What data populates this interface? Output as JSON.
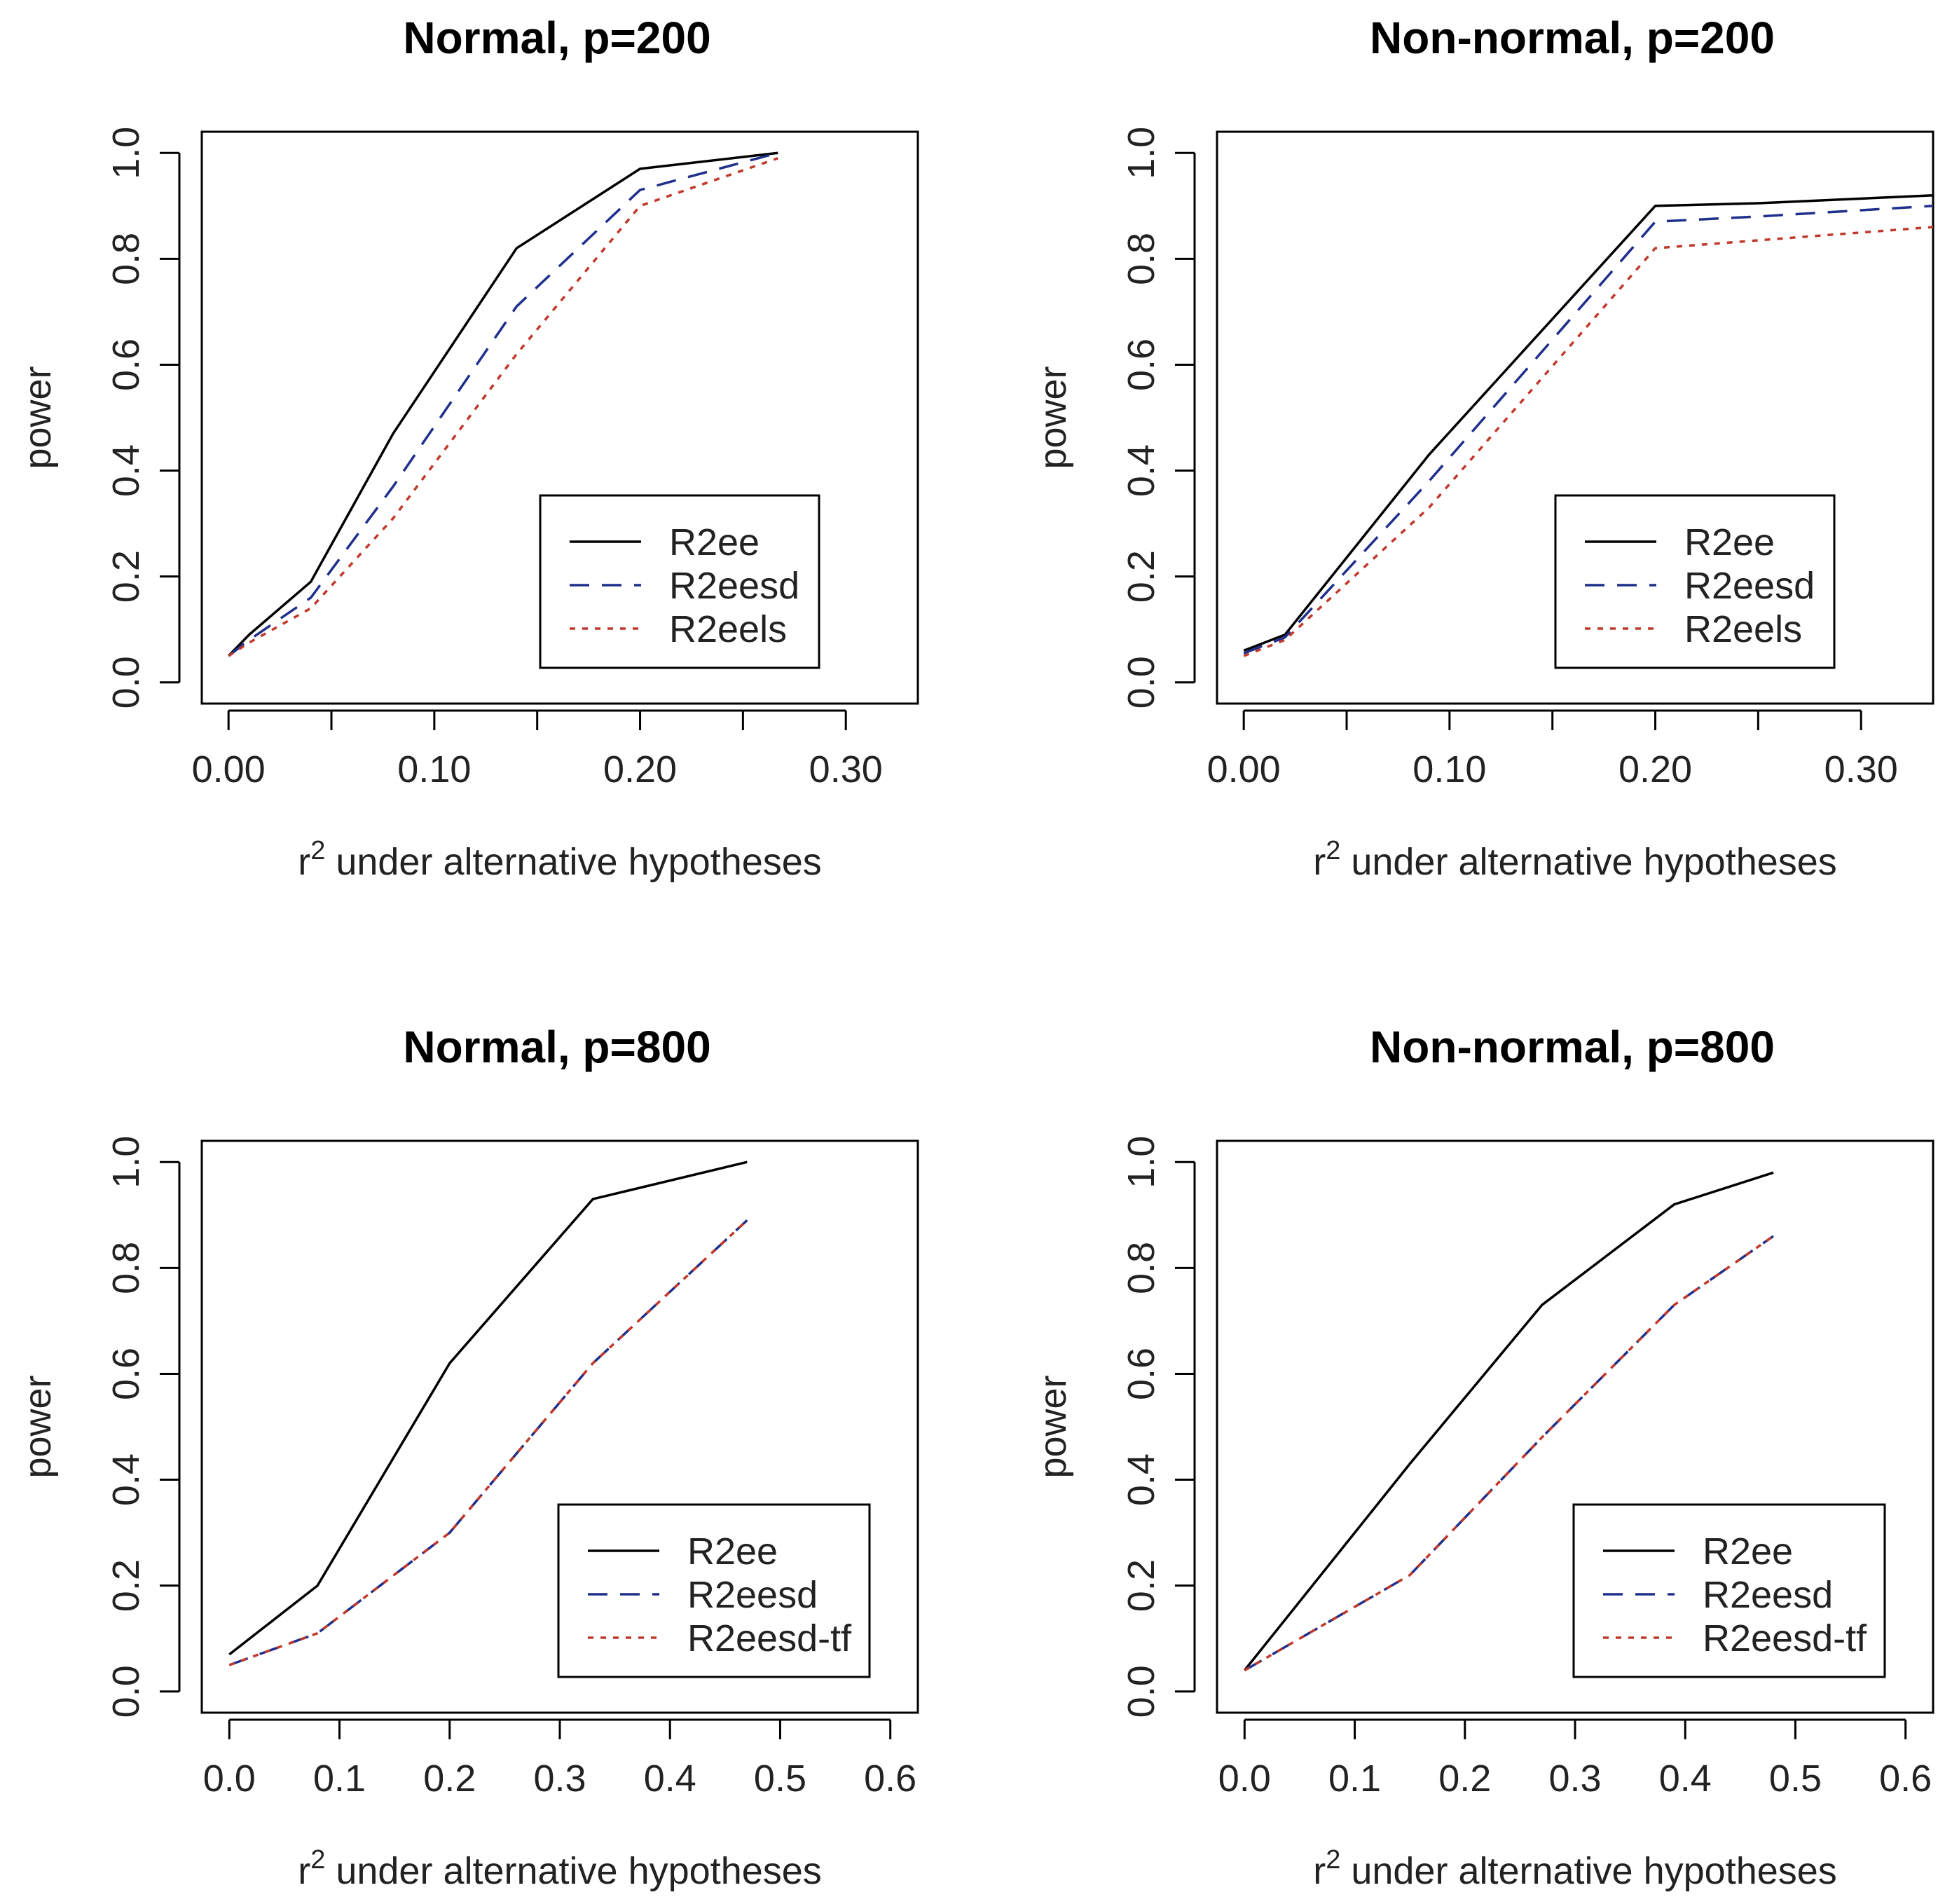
{
  "figure": {
    "xlabel_prefix": "r",
    "xlabel_sup": "2",
    "xlabel_suffix": " under alternative hypotheses",
    "ylabel": "power"
  },
  "chart_data": [
    {
      "type": "line",
      "title": "Normal, p=200",
      "xlabel": "r² under alternative hypotheses",
      "ylabel": "power",
      "xlim": [
        -0.013,
        0.335
      ],
      "ylim": [
        -0.04,
        1.04
      ],
      "xticks": [
        0.0,
        0.05,
        0.1,
        0.15,
        0.2,
        0.25,
        0.3
      ],
      "xtick_labels": [
        "0.00",
        "",
        "0.10",
        "",
        "0.20",
        "",
        "0.30"
      ],
      "yticks": [
        0.0,
        0.2,
        0.4,
        0.6,
        0.8,
        1.0
      ],
      "ytick_labels": [
        "0.0",
        "0.2",
        "0.4",
        "0.6",
        "0.8",
        "1.0"
      ],
      "legend_position": "bottom-right",
      "series": [
        {
          "name": "R2ee",
          "color": "#000000",
          "dash": "solid",
          "x": [
            0.0,
            0.01,
            0.04,
            0.08,
            0.14,
            0.2,
            0.267
          ],
          "y": [
            0.05,
            0.09,
            0.19,
            0.47,
            0.82,
            0.97,
            1.0
          ]
        },
        {
          "name": "R2eesd",
          "color": "#1f2f8c",
          "dash": "dashed",
          "x": [
            0.0,
            0.01,
            0.04,
            0.08,
            0.14,
            0.2,
            0.267
          ],
          "y": [
            0.05,
            0.08,
            0.16,
            0.37,
            0.71,
            0.93,
            1.0
          ]
        },
        {
          "name": "R2eels",
          "color": "#c0392b",
          "dash": "dotted",
          "x": [
            0.0,
            0.01,
            0.04,
            0.08,
            0.14,
            0.2,
            0.267
          ],
          "y": [
            0.05,
            0.075,
            0.14,
            0.31,
            0.62,
            0.9,
            0.99
          ]
        }
      ]
    },
    {
      "type": "line",
      "title": "Non-normal, p=200",
      "xlabel": "r² under alternative hypotheses",
      "ylabel": "power",
      "xlim": [
        -0.013,
        0.335
      ],
      "ylim": [
        -0.04,
        1.04
      ],
      "xticks": [
        0.0,
        0.05,
        0.1,
        0.15,
        0.2,
        0.25,
        0.3
      ],
      "xtick_labels": [
        "0.00",
        "",
        "0.10",
        "",
        "0.20",
        "",
        "0.30"
      ],
      "yticks": [
        0.0,
        0.2,
        0.4,
        0.6,
        0.8,
        1.0
      ],
      "ytick_labels": [
        "0.0",
        "0.2",
        "0.4",
        "0.6",
        "0.8",
        "1.0"
      ],
      "legend_position": "bottom-right",
      "series": [
        {
          "name": "R2ee",
          "color": "#000000",
          "dash": "solid",
          "x": [
            0.0,
            0.02,
            0.09,
            0.2,
            0.25,
            0.335
          ],
          "y": [
            0.06,
            0.09,
            0.43,
            0.9,
            0.905,
            0.92
          ]
        },
        {
          "name": "R2eesd",
          "color": "#1f2f8c",
          "dash": "dashed",
          "x": [
            0.0,
            0.02,
            0.09,
            0.2,
            0.25,
            0.335
          ],
          "y": [
            0.055,
            0.085,
            0.38,
            0.87,
            0.88,
            0.9
          ]
        },
        {
          "name": "R2eels",
          "color": "#c0392b",
          "dash": "dotted",
          "x": [
            0.0,
            0.02,
            0.09,
            0.2,
            0.25,
            0.335
          ],
          "y": [
            0.05,
            0.08,
            0.33,
            0.82,
            0.835,
            0.86
          ]
        }
      ]
    },
    {
      "type": "line",
      "title": "Normal, p=800",
      "xlabel": "r² under alternative hypotheses",
      "ylabel": "power",
      "xlim": [
        -0.025,
        0.625
      ],
      "ylim": [
        -0.04,
        1.04
      ],
      "xticks": [
        0.0,
        0.1,
        0.2,
        0.3,
        0.4,
        0.5,
        0.6
      ],
      "xtick_labels": [
        "0.0",
        "0.1",
        "0.2",
        "0.3",
        "0.4",
        "0.5",
        "0.6"
      ],
      "yticks": [
        0.0,
        0.2,
        0.4,
        0.6,
        0.8,
        1.0
      ],
      "ytick_labels": [
        "0.0",
        "0.2",
        "0.4",
        "0.6",
        "0.8",
        "1.0"
      ],
      "legend_position": "bottom-right",
      "series": [
        {
          "name": "R2ee",
          "color": "#000000",
          "dash": "solid",
          "x": [
            0.0,
            0.08,
            0.2,
            0.33,
            0.47
          ],
          "y": [
            0.07,
            0.2,
            0.62,
            0.93,
            1.0
          ]
        },
        {
          "name": "R2eesd",
          "color": "#1f2f8c",
          "dash": "dashed",
          "x": [
            0.0,
            0.08,
            0.2,
            0.33,
            0.47
          ],
          "y": [
            0.05,
            0.11,
            0.3,
            0.62,
            0.89
          ]
        },
        {
          "name": "R2eesd-tf",
          "color": "#c0392b",
          "dash": "dotted",
          "x": [
            0.0,
            0.08,
            0.2,
            0.33,
            0.47
          ],
          "y": [
            0.05,
            0.11,
            0.3,
            0.62,
            0.89
          ]
        }
      ]
    },
    {
      "type": "line",
      "title": "Non-normal, p=800",
      "xlabel": "r² under alternative hypotheses",
      "ylabel": "power",
      "xlim": [
        -0.025,
        0.625
      ],
      "ylim": [
        -0.04,
        1.04
      ],
      "xticks": [
        0.0,
        0.1,
        0.2,
        0.3,
        0.4,
        0.5,
        0.6
      ],
      "xtick_labels": [
        "0.0",
        "0.1",
        "0.2",
        "0.3",
        "0.4",
        "0.5",
        "0.6"
      ],
      "yticks": [
        0.0,
        0.2,
        0.4,
        0.6,
        0.8,
        1.0
      ],
      "ytick_labels": [
        "0.0",
        "0.2",
        "0.4",
        "0.6",
        "0.8",
        "1.0"
      ],
      "legend_position": "bottom-right",
      "series": [
        {
          "name": "R2ee",
          "color": "#000000",
          "dash": "solid",
          "x": [
            0.0,
            0.15,
            0.27,
            0.39,
            0.48
          ],
          "y": [
            0.04,
            0.43,
            0.73,
            0.92,
            0.98
          ]
        },
        {
          "name": "R2eesd",
          "color": "#1f2f8c",
          "dash": "dashed",
          "x": [
            0.0,
            0.15,
            0.27,
            0.39,
            0.48
          ],
          "y": [
            0.04,
            0.22,
            0.48,
            0.73,
            0.86
          ]
        },
        {
          "name": "R2eesd-tf",
          "color": "#c0392b",
          "dash": "dotted",
          "x": [
            0.0,
            0.15,
            0.27,
            0.39,
            0.48
          ],
          "y": [
            0.04,
            0.22,
            0.48,
            0.73,
            0.86
          ]
        }
      ]
    }
  ]
}
